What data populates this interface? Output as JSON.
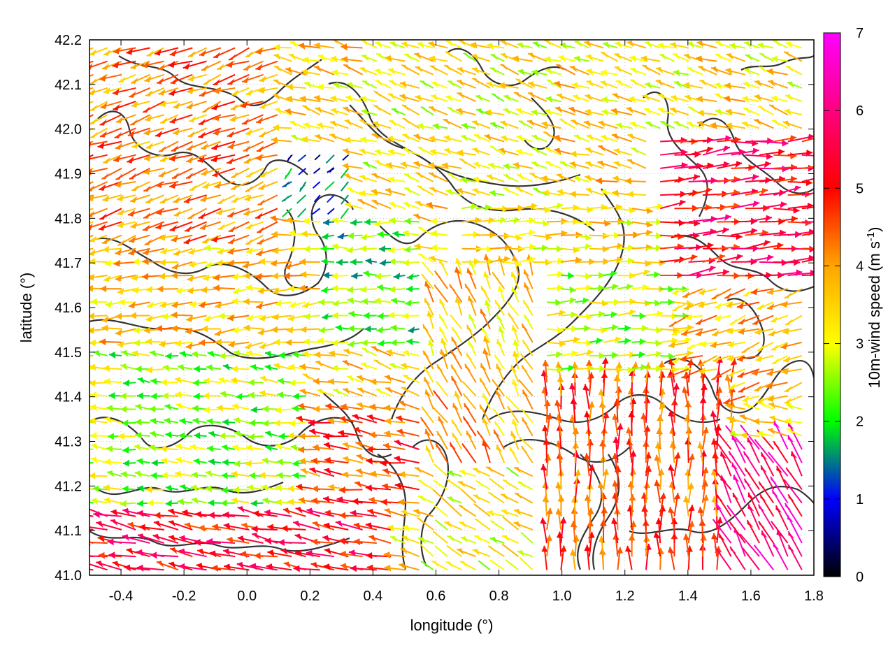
{
  "chart_data": {
    "type": "vector-field",
    "xlabel": "longitude (°)",
    "ylabel": "latitude (°)",
    "xlim": [
      -0.5,
      1.8
    ],
    "ylim": [
      41.0,
      42.2
    ],
    "xticks": [
      "-0.4",
      "-0.2",
      "0.0",
      "0.2",
      "0.4",
      "0.6",
      "0.8",
      "1.0",
      "1.2",
      "1.4",
      "1.6",
      "1.8"
    ],
    "xtick_values": [
      -0.4,
      -0.2,
      0.0,
      0.2,
      0.4,
      0.6,
      0.8,
      1.0,
      1.2,
      1.4,
      1.6,
      1.8
    ],
    "yticks": [
      "41.0",
      "41.1",
      "41.2",
      "41.3",
      "41.4",
      "41.5",
      "41.6",
      "41.7",
      "41.8",
      "41.9",
      "42.0",
      "42.1",
      "42.2"
    ],
    "ytick_values": [
      41.0,
      41.1,
      41.2,
      41.3,
      41.4,
      41.5,
      41.6,
      41.7,
      41.8,
      41.9,
      42.0,
      42.1,
      42.2
    ],
    "grid": true,
    "colorbar": {
      "label": "10m-wind speed (m s",
      "label_superscript": "-1",
      "label_close": ")",
      "range": [
        0,
        7
      ],
      "ticks": [
        "0",
        "1",
        "2",
        "3",
        "4",
        "5",
        "6",
        "7"
      ],
      "tick_values": [
        0,
        1,
        2,
        3,
        4,
        5,
        6,
        7
      ],
      "palette": [
        "#000000",
        "#0000ff",
        "#00ff00",
        "#ffff00",
        "#ffa500",
        "#ff0000",
        "#ff00ff"
      ]
    },
    "wind_regions": [
      {
        "x": [
          -0.5,
          0.1
        ],
        "y": [
          41.75,
          42.2
        ],
        "u": -1.0,
        "v": -0.35,
        "speed": 4.2
      },
      {
        "x": [
          -0.5,
          0.25
        ],
        "y": [
          41.5,
          41.75
        ],
        "u": -1.0,
        "v": -0.1,
        "speed": 3.6
      },
      {
        "x": [
          -0.5,
          0.2
        ],
        "y": [
          41.15,
          41.5
        ],
        "u": -1.0,
        "v": 0.1,
        "speed": 2.6
      },
      {
        "x": [
          -0.5,
          0.5
        ],
        "y": [
          41.0,
          41.15
        ],
        "u": -1.0,
        "v": 0.2,
        "speed": 5.2
      },
      {
        "x": [
          0.1,
          0.35
        ],
        "y": [
          41.8,
          41.95
        ],
        "u": -0.5,
        "v": -0.5,
        "speed": 1.2
      },
      {
        "x": [
          0.25,
          0.55
        ],
        "y": [
          41.5,
          41.8
        ],
        "u": -1.0,
        "v": 0.0,
        "speed": 2.2
      },
      {
        "x": [
          0.2,
          0.55
        ],
        "y": [
          41.15,
          41.4
        ],
        "u": -1.0,
        "v": 0.15,
        "speed": 4.6
      },
      {
        "x": [
          0.55,
          0.95
        ],
        "y": [
          41.45,
          41.7
        ],
        "u": -0.3,
        "v": 0.6,
        "speed": 3.6
      },
      {
        "x": [
          0.55,
          0.95
        ],
        "y": [
          41.25,
          41.45
        ],
        "u": -0.4,
        "v": 0.7,
        "speed": 3.9
      },
      {
        "x": [
          0.65,
          1.3
        ],
        "y": [
          41.7,
          41.85
        ],
        "u": 1.0,
        "v": 0.02,
        "speed": 3.4
      },
      {
        "x": [
          0.95,
          1.4
        ],
        "y": [
          41.45,
          41.7
        ],
        "u": 1.0,
        "v": 0.05,
        "speed": 2.8
      },
      {
        "x": [
          1.3,
          1.8
        ],
        "y": [
          41.65,
          42.0
        ],
        "u": 1.0,
        "v": 0.1,
        "speed": 5.3
      },
      {
        "x": [
          1.4,
          1.8
        ],
        "y": [
          41.4,
          41.65
        ],
        "u": -0.9,
        "v": -0.3,
        "speed": 3.8
      },
      {
        "x": [
          0.4,
          1.0
        ],
        "y": [
          41.85,
          42.2
        ],
        "u": -0.8,
        "v": 0.3,
        "speed": 3.2
      },
      {
        "x": [
          1.0,
          1.8
        ],
        "y": [
          42.0,
          42.2
        ],
        "u": -0.9,
        "v": 0.3,
        "speed": 3.4
      },
      {
        "x": [
          0.95,
          1.55
        ],
        "y": [
          41.0,
          41.45
        ],
        "u": 0.0,
        "v": 1.0,
        "speed": 4.6
      },
      {
        "x": [
          1.5,
          1.8
        ],
        "y": [
          41.0,
          41.3
        ],
        "u": -0.5,
        "v": 0.8,
        "speed": 6.0
      },
      {
        "x": [
          0.55,
          0.95
        ],
        "y": [
          41.0,
          41.25
        ],
        "u": -0.7,
        "v": 0.4,
        "speed": 3.2
      }
    ]
  }
}
